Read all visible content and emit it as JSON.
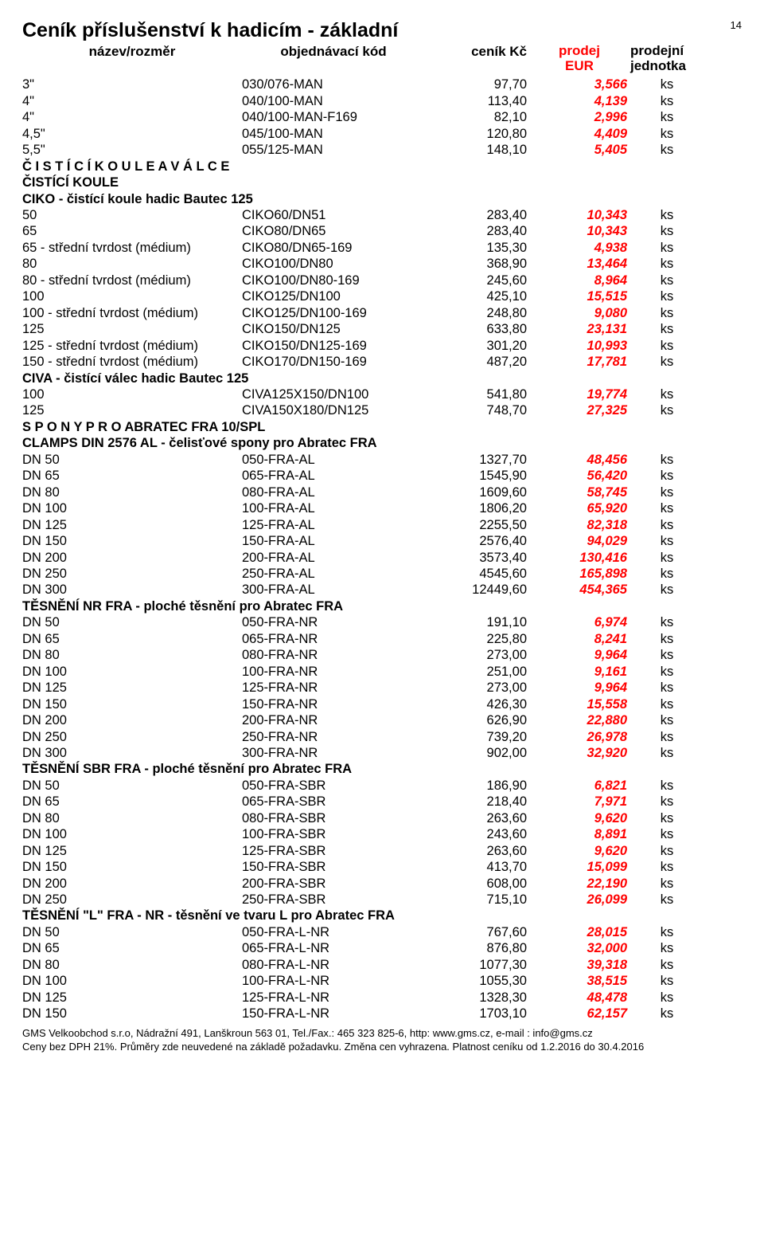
{
  "page_number": "14",
  "title": "Ceník příslušenství k hadicím - základní",
  "header": {
    "name": "název/rozměr",
    "code": "objednávací kód",
    "price": "ceník Kč",
    "eur_l1": "prodej",
    "eur_l2": "EUR",
    "unit_l1": "prodejní",
    "unit_l2": "jednotka"
  },
  "sections": [
    {
      "type": "row",
      "name": "3\"",
      "code": "030/076-MAN",
      "price": "97,70",
      "eur": "3,566",
      "unit": "ks"
    },
    {
      "type": "row",
      "name": "4\"",
      "code": "040/100-MAN",
      "price": "113,40",
      "eur": "4,139",
      "unit": "ks"
    },
    {
      "type": "row",
      "name": "4\"",
      "code": "040/100-MAN-F169",
      "price": "82,10",
      "eur": "2,996",
      "unit": "ks"
    },
    {
      "type": "row",
      "name": "4,5\"",
      "code": "045/100-MAN",
      "price": "120,80",
      "eur": "4,409",
      "unit": "ks"
    },
    {
      "type": "row",
      "name": "5,5\"",
      "code": "055/125-MAN",
      "price": "148,10",
      "eur": "5,405",
      "unit": "ks"
    },
    {
      "type": "section",
      "text": "Č I S T Í C Í  K O U L E  A  V Á L C E"
    },
    {
      "type": "section",
      "text": "ČISTÍCÍ KOULE"
    },
    {
      "type": "section",
      "text": "CIKO - čistící koule hadic Bautec 125"
    },
    {
      "type": "row",
      "name": "50",
      "code": "CIKO60/DN51",
      "price": "283,40",
      "eur": "10,343",
      "unit": "ks"
    },
    {
      "type": "row",
      "name": "65",
      "code": "CIKO80/DN65",
      "price": "283,40",
      "eur": "10,343",
      "unit": "ks"
    },
    {
      "type": "row",
      "name": "65 - střední tvrdost (médium)",
      "code": "CIKO80/DN65-169",
      "price": "135,30",
      "eur": "4,938",
      "unit": "ks"
    },
    {
      "type": "row",
      "name": "80",
      "code": "CIKO100/DN80",
      "price": "368,90",
      "eur": "13,464",
      "unit": "ks"
    },
    {
      "type": "row",
      "name": "80 - střední tvrdost (médium)",
      "code": "CIKO100/DN80-169",
      "price": "245,60",
      "eur": "8,964",
      "unit": "ks"
    },
    {
      "type": "row",
      "name": "100",
      "code": "CIKO125/DN100",
      "price": "425,10",
      "eur": "15,515",
      "unit": "ks"
    },
    {
      "type": "row",
      "name": "100 - střední tvrdost (médium)",
      "code": "CIKO125/DN100-169",
      "price": "248,80",
      "eur": "9,080",
      "unit": "ks"
    },
    {
      "type": "row",
      "name": "125",
      "code": "CIKO150/DN125",
      "price": "633,80",
      "eur": "23,131",
      "unit": "ks"
    },
    {
      "type": "row",
      "name": "125 - střední tvrdost (médium)",
      "code": "CIKO150/DN125-169",
      "price": "301,20",
      "eur": "10,993",
      "unit": "ks"
    },
    {
      "type": "row",
      "name": "150 - střední tvrdost (médium)",
      "code": "CIKO170/DN150-169",
      "price": "487,20",
      "eur": "17,781",
      "unit": "ks"
    },
    {
      "type": "section",
      "text": "CIVA - čistící válec hadic Bautec 125"
    },
    {
      "type": "row",
      "name": "100",
      "code": "CIVA125X150/DN100",
      "price": "541,80",
      "eur": "19,774",
      "unit": "ks"
    },
    {
      "type": "row",
      "name": "125",
      "code": "CIVA150X180/DN125",
      "price": "748,70",
      "eur": "27,325",
      "unit": "ks"
    },
    {
      "type": "section",
      "text": "S P O N Y  P R O  ABRATEC FRA 10/SPL"
    },
    {
      "type": "section",
      "text": "CLAMPS DIN 2576 AL - čelisťové spony pro Abratec FRA"
    },
    {
      "type": "row",
      "name": "DN 50",
      "code": "050-FRA-AL",
      "price": "1327,70",
      "eur": "48,456",
      "unit": "ks"
    },
    {
      "type": "row",
      "name": "DN 65",
      "code": "065-FRA-AL",
      "price": "1545,90",
      "eur": "56,420",
      "unit": "ks"
    },
    {
      "type": "row",
      "name": "DN 80",
      "code": "080-FRA-AL",
      "price": "1609,60",
      "eur": "58,745",
      "unit": "ks"
    },
    {
      "type": "row",
      "name": "DN 100",
      "code": "100-FRA-AL",
      "price": "1806,20",
      "eur": "65,920",
      "unit": "ks"
    },
    {
      "type": "row",
      "name": "DN 125",
      "code": "125-FRA-AL",
      "price": "2255,50",
      "eur": "82,318",
      "unit": "ks"
    },
    {
      "type": "row",
      "name": "DN 150",
      "code": "150-FRA-AL",
      "price": "2576,40",
      "eur": "94,029",
      "unit": "ks"
    },
    {
      "type": "row",
      "name": "DN 200",
      "code": "200-FRA-AL",
      "price": "3573,40",
      "eur": "130,416",
      "unit": "ks"
    },
    {
      "type": "row",
      "name": "DN 250",
      "code": "250-FRA-AL",
      "price": "4545,60",
      "eur": "165,898",
      "unit": "ks"
    },
    {
      "type": "row",
      "name": "DN 300",
      "code": "300-FRA-AL",
      "price": "12449,60",
      "eur": "454,365",
      "unit": "ks"
    },
    {
      "type": "section",
      "text": "TĚSNĚNÍ NR FRA - ploché těsnění pro Abratec FRA"
    },
    {
      "type": "row",
      "name": "DN 50",
      "code": "050-FRA-NR",
      "price": "191,10",
      "eur": "6,974",
      "unit": "ks"
    },
    {
      "type": "row",
      "name": "DN 65",
      "code": "065-FRA-NR",
      "price": "225,80",
      "eur": "8,241",
      "unit": "ks"
    },
    {
      "type": "row",
      "name": "DN 80",
      "code": "080-FRA-NR",
      "price": "273,00",
      "eur": "9,964",
      "unit": "ks"
    },
    {
      "type": "row",
      "name": "DN 100",
      "code": "100-FRA-NR",
      "price": "251,00",
      "eur": "9,161",
      "unit": "ks"
    },
    {
      "type": "row",
      "name": "DN 125",
      "code": "125-FRA-NR",
      "price": "273,00",
      "eur": "9,964",
      "unit": "ks"
    },
    {
      "type": "row",
      "name": "DN 150",
      "code": "150-FRA-NR",
      "price": "426,30",
      "eur": "15,558",
      "unit": "ks"
    },
    {
      "type": "row",
      "name": "DN 200",
      "code": "200-FRA-NR",
      "price": "626,90",
      "eur": "22,880",
      "unit": "ks"
    },
    {
      "type": "row",
      "name": "DN 250",
      "code": "250-FRA-NR",
      "price": "739,20",
      "eur": "26,978",
      "unit": "ks"
    },
    {
      "type": "row",
      "name": "DN 300",
      "code": "300-FRA-NR",
      "price": "902,00",
      "eur": "32,920",
      "unit": "ks"
    },
    {
      "type": "section",
      "text": "TĚSNĚNÍ SBR FRA - ploché těsnění pro Abratec FRA"
    },
    {
      "type": "row",
      "name": "DN 50",
      "code": "050-FRA-SBR",
      "price": "186,90",
      "eur": "6,821",
      "unit": "ks"
    },
    {
      "type": "row",
      "name": "DN 65",
      "code": "065-FRA-SBR",
      "price": "218,40",
      "eur": "7,971",
      "unit": "ks"
    },
    {
      "type": "row",
      "name": "DN 80",
      "code": "080-FRA-SBR",
      "price": "263,60",
      "eur": "9,620",
      "unit": "ks"
    },
    {
      "type": "row",
      "name": "DN 100",
      "code": "100-FRA-SBR",
      "price": "243,60",
      "eur": "8,891",
      "unit": "ks"
    },
    {
      "type": "row",
      "name": "DN 125",
      "code": "125-FRA-SBR",
      "price": "263,60",
      "eur": "9,620",
      "unit": "ks"
    },
    {
      "type": "row",
      "name": "DN 150",
      "code": "150-FRA-SBR",
      "price": "413,70",
      "eur": "15,099",
      "unit": "ks"
    },
    {
      "type": "row",
      "name": "DN 200",
      "code": "200-FRA-SBR",
      "price": "608,00",
      "eur": "22,190",
      "unit": "ks"
    },
    {
      "type": "row",
      "name": "DN 250",
      "code": "250-FRA-SBR",
      "price": "715,10",
      "eur": "26,099",
      "unit": "ks"
    },
    {
      "type": "section",
      "text": "TĚSNĚNÍ \"L\" FRA - NR - těsnění ve tvaru L pro Abratec FRA"
    },
    {
      "type": "row",
      "name": "DN 50",
      "code": "050-FRA-L-NR",
      "price": "767,60",
      "eur": "28,015",
      "unit": "ks"
    },
    {
      "type": "row",
      "name": "DN 65",
      "code": "065-FRA-L-NR",
      "price": "876,80",
      "eur": "32,000",
      "unit": "ks"
    },
    {
      "type": "row",
      "name": "DN 80",
      "code": "080-FRA-L-NR",
      "price": "1077,30",
      "eur": "39,318",
      "unit": "ks"
    },
    {
      "type": "row",
      "name": "DN 100",
      "code": "100-FRA-L-NR",
      "price": "1055,30",
      "eur": "38,515",
      "unit": "ks"
    },
    {
      "type": "row",
      "name": "DN 125",
      "code": "125-FRA-L-NR",
      "price": "1328,30",
      "eur": "48,478",
      "unit": "ks"
    },
    {
      "type": "row",
      "name": "DN 150",
      "code": "150-FRA-L-NR",
      "price": "1703,10",
      "eur": "62,157",
      "unit": "ks"
    }
  ],
  "footer": {
    "line1": "GMS Velkoobchod s.r.o, Nádražní 491, Lanškroun 563 01, Tel./Fax.: 465 323 825-6, http: www.gms.cz, e-mail : info@gms.cz",
    "line2": "Ceny bez DPH 21%. Průměry zde neuvedené na základě požadavku. Změna cen vyhrazena. Platnost ceníku od 1.2.2016 do 30.4.2016"
  }
}
